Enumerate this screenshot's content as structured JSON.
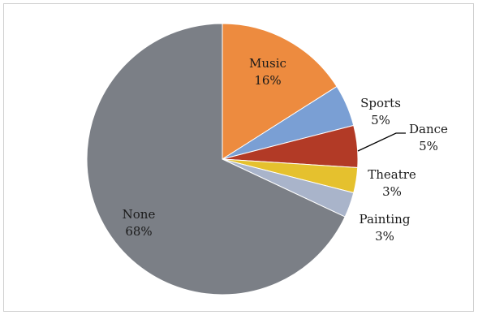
{
  "chart_data": {
    "type": "pie",
    "title": "",
    "slices": [
      {
        "label": "Music",
        "value": 16,
        "display": "16%",
        "color": "#ED8B3F"
      },
      {
        "label": "Sports",
        "value": 5,
        "display": "5%",
        "color": "#7A9FD4"
      },
      {
        "label": "Dance",
        "value": 5,
        "display": "5%",
        "color": "#B23A26"
      },
      {
        "label": "Theatre",
        "value": 3,
        "display": "3%",
        "color": "#E5C12E"
      },
      {
        "label": "Painting",
        "value": 3,
        "display": "3%",
        "color": "#A9B4CA"
      },
      {
        "label": "None",
        "value": 68,
        "display": "68%",
        "color": "#7B7F86"
      }
    ],
    "start_angle": "12 o'clock",
    "direction": "clockwise",
    "legend": "none",
    "label_position": "slice labels (inside or outside with leader line)"
  }
}
